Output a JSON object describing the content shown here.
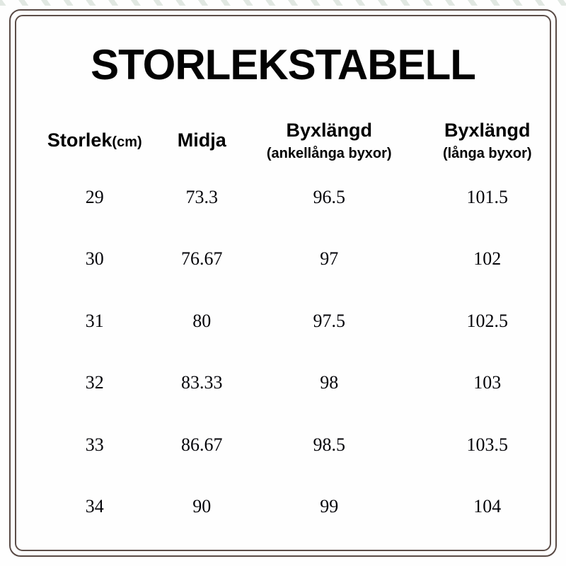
{
  "title": "STORLEKSTABELL",
  "table": {
    "columns": [
      {
        "label": "Storlek",
        "unit": "(cm)"
      },
      {
        "label": "Midja"
      },
      {
        "label": "Byxlängd",
        "subtitle": "(ankellånga byxor)"
      },
      {
        "label": "Byxlängd",
        "subtitle": "(långa byxor)"
      }
    ],
    "rows": [
      [
        "29",
        "73.3",
        "96.5",
        "101.5"
      ],
      [
        "30",
        "76.67",
        "97",
        "102"
      ],
      [
        "31",
        "80",
        "97.5",
        "102.5"
      ],
      [
        "32",
        "83.33",
        "98",
        "103"
      ],
      [
        "33",
        "86.67",
        "98.5",
        "103.5"
      ],
      [
        "34",
        "90",
        "99",
        "104"
      ]
    ]
  },
  "chart_data": {
    "type": "table",
    "title": "STORLEKSTABELL",
    "columns": [
      "Storlek(cm)",
      "Midja",
      "Byxlängd (ankellånga byxor)",
      "Byxlängd (långa byxor)"
    ],
    "rows": [
      [
        29,
        73.3,
        96.5,
        101.5
      ],
      [
        30,
        76.67,
        97,
        102
      ],
      [
        31,
        80,
        97.5,
        102.5
      ],
      [
        32,
        83.33,
        98,
        103
      ],
      [
        33,
        86.67,
        98.5,
        103.5
      ],
      [
        34,
        90,
        99,
        104
      ]
    ],
    "units": "cm"
  },
  "colors": {
    "frame": "#594a45",
    "text": "#000000",
    "background": "#ffffff"
  }
}
